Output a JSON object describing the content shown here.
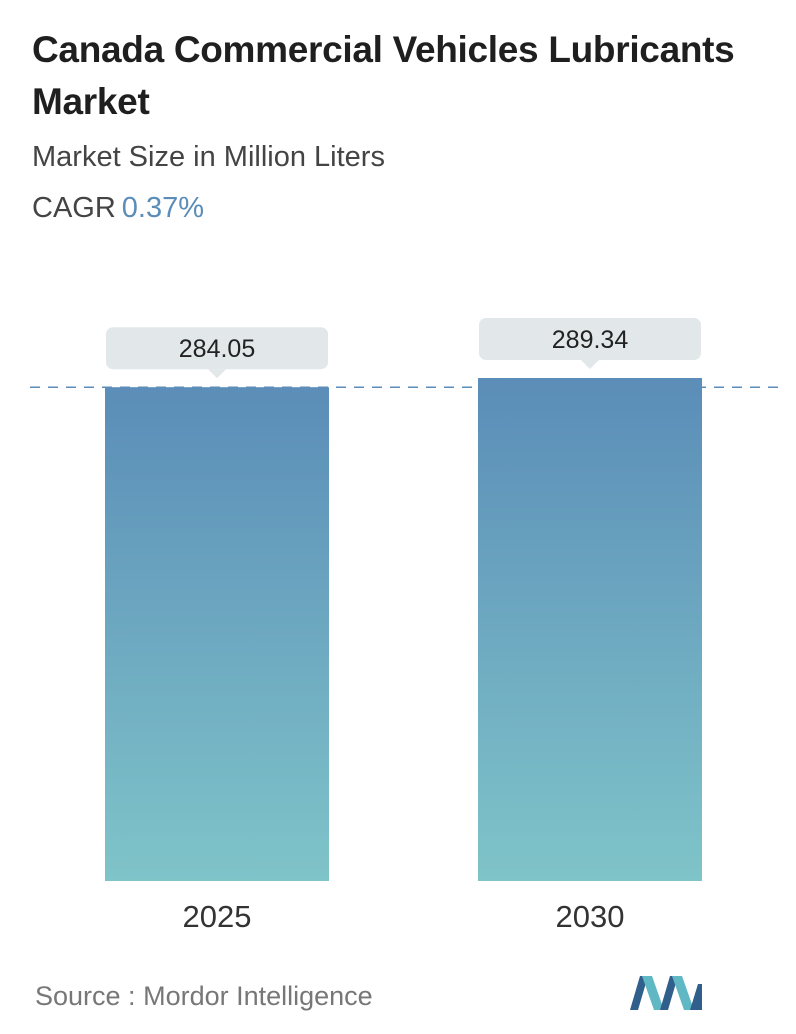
{
  "header": {
    "title": "Canada Commercial Vehicles Lubricants Market",
    "subtitle": "Market Size in Million Liters",
    "cagr_label": "CAGR",
    "cagr_value": "0.37%"
  },
  "footer": {
    "source_label": "Source :",
    "source_name": "Mordor Intelligence",
    "logo_icon": "mordor-intelligence-logo-icon"
  },
  "colors": {
    "bar_top": "#5b8db8",
    "bar_bottom": "#7fc4c9",
    "callout_bg": "#e2e8ea",
    "reference_line": "#5b8db8",
    "cagr_accent": "#5b8db8",
    "logo_dark": "#2f5f8a",
    "logo_light": "#5fb8c4"
  },
  "chart_data": {
    "type": "bar",
    "categories": [
      "2025",
      "2030"
    ],
    "values": [
      284.05,
      289.34
    ],
    "value_labels": [
      "284.05",
      "289.34"
    ],
    "title": "Canada Commercial Vehicles Lubricants Market",
    "subtitle": "Market Size in Million Liters",
    "xlabel": "",
    "ylabel": "",
    "ylim": [
      0,
      289.34
    ],
    "grid": false,
    "legend": "none",
    "reference_line_at": 284.05
  }
}
